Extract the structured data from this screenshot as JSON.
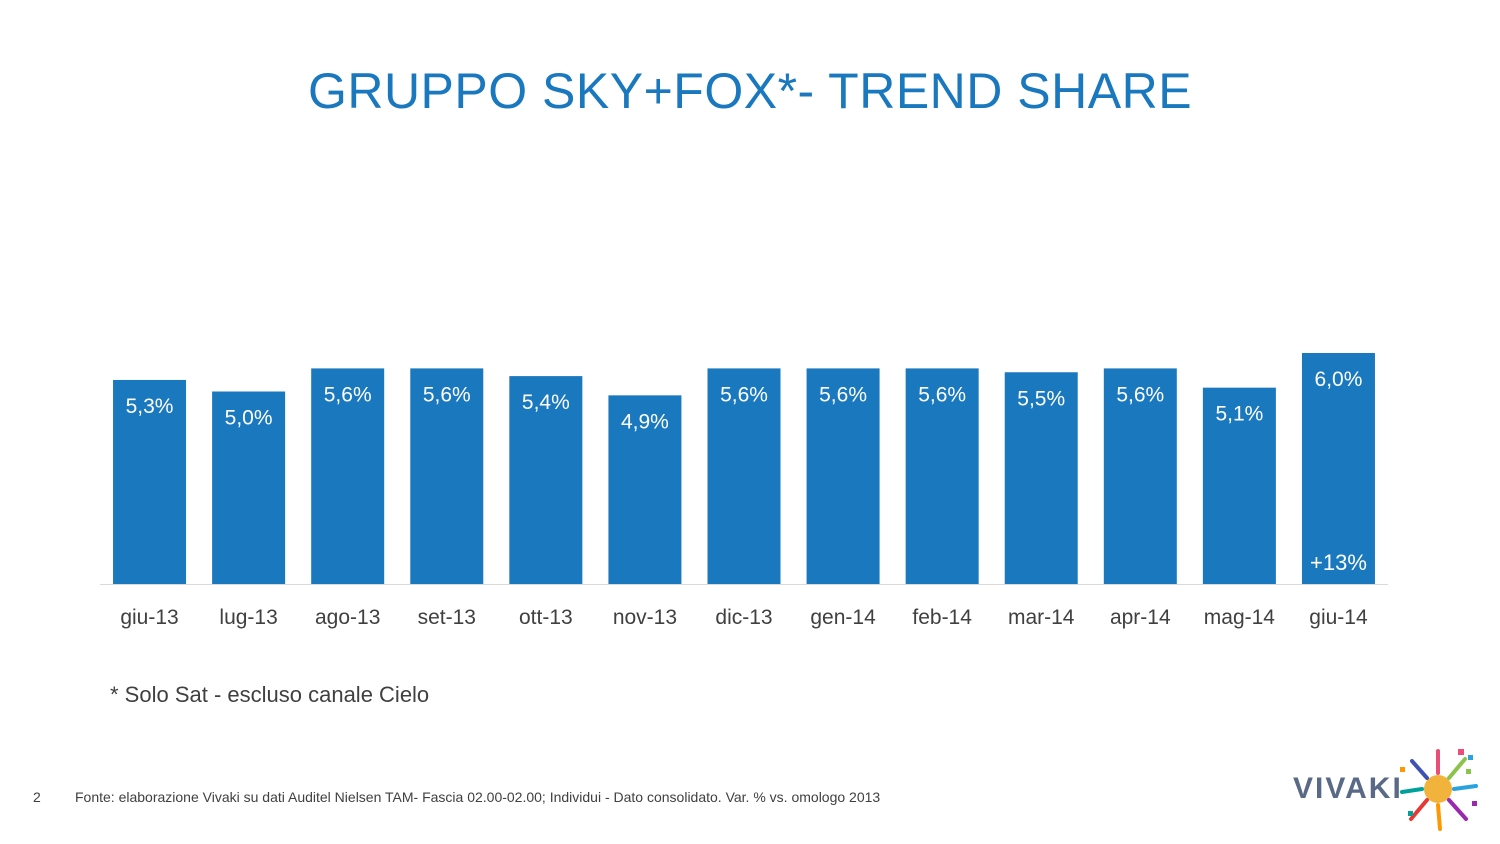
{
  "slide": {
    "title": "GRUPPO SKY+FOX*- TREND SHARE",
    "footnote": "* Solo Sat - escluso canale Cielo",
    "page_number": "2",
    "source": "Fonte: elaborazione Vivaki su dati Auditel Nielsen TAM- Fascia 02.00-02.00; Individui - Dato consolidato. Var. % vs. omologo 2013",
    "logo_text": "VIVAKI"
  },
  "colors": {
    "bar": "#1a78bf",
    "title": "#1a78bf",
    "label_inside": "#ffffff",
    "axis_text": "#404040"
  },
  "chart_data": {
    "type": "bar",
    "categories": [
      "giu-13",
      "lug-13",
      "ago-13",
      "set-13",
      "ott-13",
      "nov-13",
      "dic-13",
      "gen-14",
      "feb-14",
      "mar-14",
      "apr-14",
      "mag-14",
      "giu-14"
    ],
    "values": [
      5.3,
      5.0,
      5.6,
      5.6,
      5.4,
      4.9,
      5.6,
      5.6,
      5.6,
      5.5,
      5.6,
      5.1,
      6.0
    ],
    "value_labels": [
      "5,3%",
      "5,0%",
      "5,6%",
      "5,6%",
      "5,4%",
      "4,9%",
      "5,6%",
      "5,6%",
      "5,6%",
      "5,5%",
      "5,6%",
      "5,1%",
      "6,0%"
    ],
    "annotations": [
      {
        "category": "giu-14",
        "text": "+13%"
      }
    ],
    "ylim": [
      0,
      6.0
    ],
    "grid": false,
    "legend": "none"
  }
}
